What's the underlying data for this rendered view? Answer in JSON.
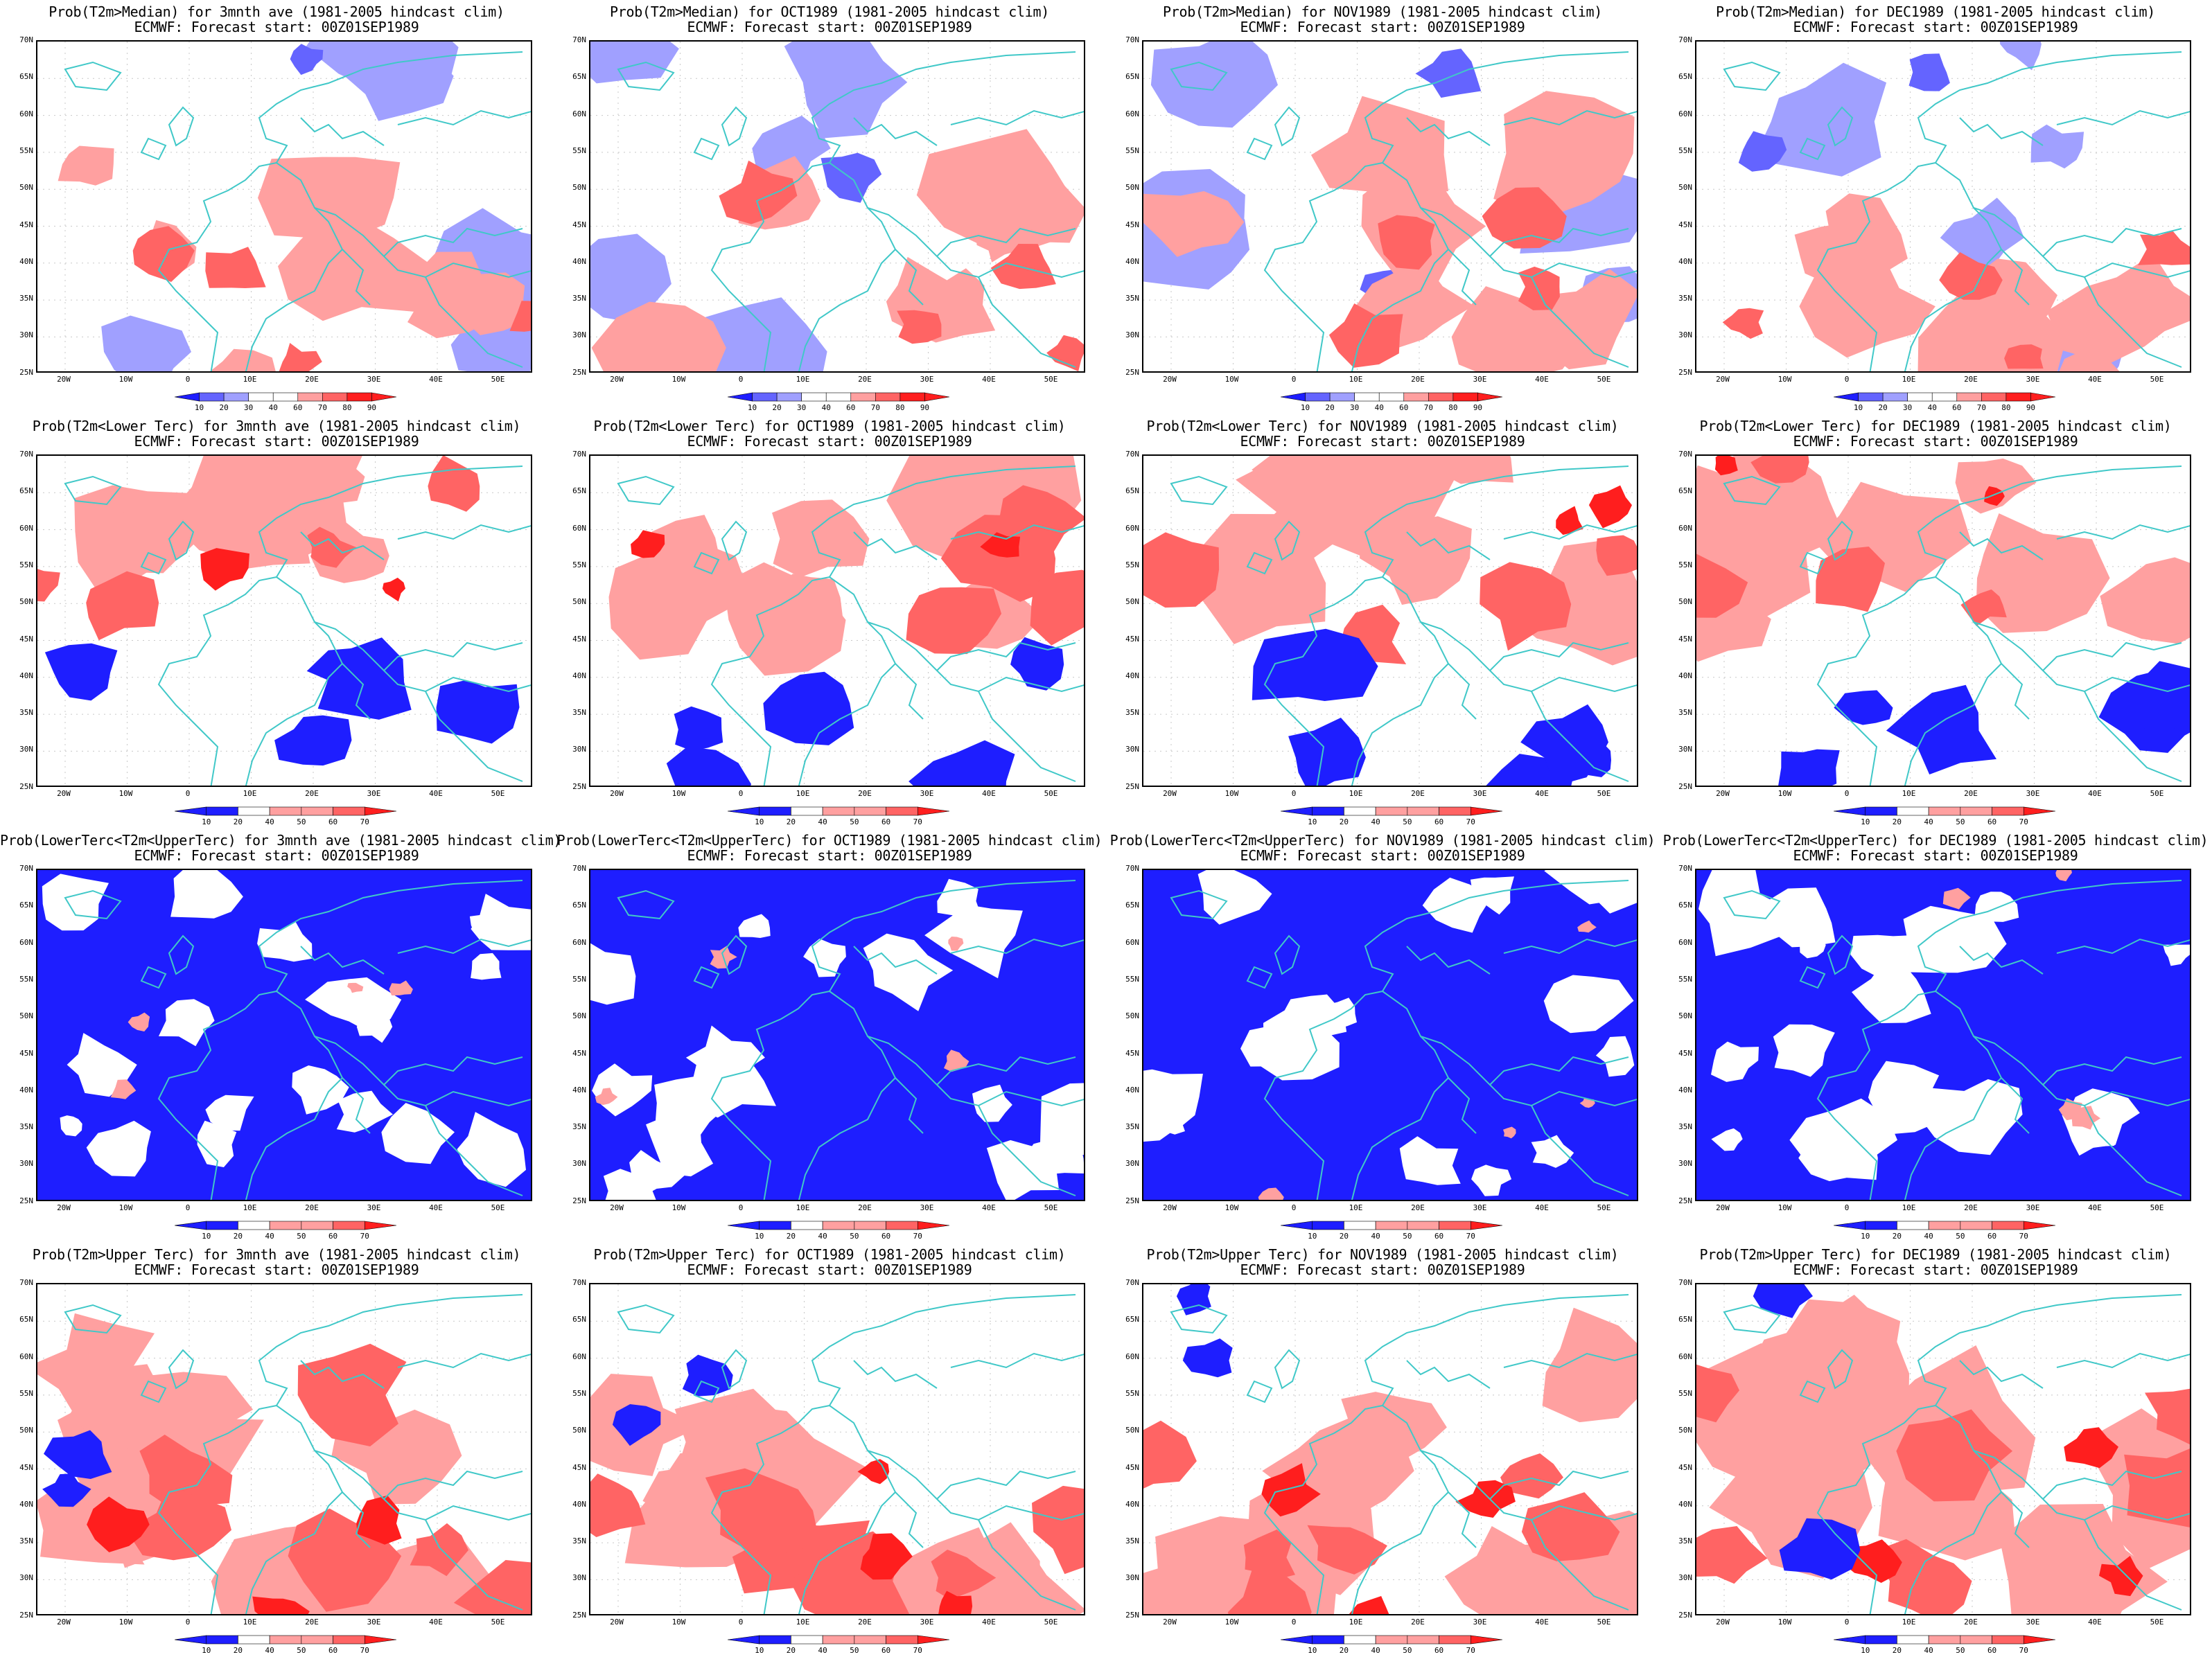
{
  "colors": {
    "coast": "#40c8c8",
    "blue_dark": "#1e1eff",
    "blue_mid": "#6464ff",
    "blue_light": "#a0a0ff",
    "red_light": "#ffa0a0",
    "red_mid": "#ff6464",
    "red_dark": "#ff1e1e"
  },
  "axes": {
    "y_ticks": [
      "70N",
      "65N",
      "60N",
      "55N",
      "50N",
      "45N",
      "40N",
      "35N",
      "30N",
      "25N"
    ],
    "x_ticks": [
      "20W",
      "10W",
      "0",
      "10E",
      "20E",
      "30E",
      "40E",
      "50E"
    ]
  },
  "colorbars": {
    "median": [
      "10",
      "20",
      "30",
      "40",
      "60",
      "70",
      "80",
      "90"
    ],
    "tercile": [
      "10",
      "20",
      "40",
      "50",
      "60",
      "70"
    ]
  },
  "panels": [
    {
      "title1": "Prob(T2m>Median) for 3mnth ave (1981-2005 hindcast clim)",
      "title2": "ECMWF: Forecast start: 00Z01SEP1989",
      "bar": "median",
      "pattern": "median"
    },
    {
      "title1": "Prob(T2m>Median) for OCT1989 (1981-2005 hindcast clim)",
      "title2": "ECMWF: Forecast start: 00Z01SEP1989",
      "bar": "median",
      "pattern": "median"
    },
    {
      "title1": "Prob(T2m>Median) for NOV1989 (1981-2005 hindcast clim)",
      "title2": "ECMWF: Forecast start: 00Z01SEP1989",
      "bar": "median",
      "pattern": "median"
    },
    {
      "title1": "Prob(T2m>Median) for DEC1989 (1981-2005 hindcast clim)",
      "title2": "ECMWF: Forecast start: 00Z01SEP1989",
      "bar": "median",
      "pattern": "median"
    },
    {
      "title1": "Prob(T2m<Lower Terc) for 3mnth ave (1981-2005 hindcast clim)",
      "title2": "ECMWF: Forecast start: 00Z01SEP1989",
      "bar": "tercile",
      "pattern": "lower"
    },
    {
      "title1": "Prob(T2m<Lower Terc) for OCT1989 (1981-2005 hindcast clim)",
      "title2": "ECMWF: Forecast start: 00Z01SEP1989",
      "bar": "tercile",
      "pattern": "lower"
    },
    {
      "title1": "Prob(T2m<Lower Terc) for NOV1989 (1981-2005 hindcast clim)",
      "title2": "ECMWF: Forecast start: 00Z01SEP1989",
      "bar": "tercile",
      "pattern": "lower"
    },
    {
      "title1": "Prob(T2m<Lower Terc) for DEC1989 (1981-2005 hindcast clim)",
      "title2": "ECMWF: Forecast start: 00Z01SEP1989",
      "bar": "tercile",
      "pattern": "lower"
    },
    {
      "title1": "Prob(LowerTerc<T2m<UpperTerc) for 3mnth ave (1981-2005 hindcast clim)",
      "title2": "ECMWF: Forecast start: 00Z01SEP1989",
      "bar": "tercile",
      "pattern": "middle"
    },
    {
      "title1": "Prob(LowerTerc<T2m<UpperTerc) for OCT1989 (1981-2005 hindcast clim)",
      "title2": "ECMWF: Forecast start: 00Z01SEP1989",
      "bar": "tercile",
      "pattern": "middle"
    },
    {
      "title1": "Prob(LowerTerc<T2m<UpperTerc) for NOV1989 (1981-2005 hindcast clim)",
      "title2": "ECMWF: Forecast start: 00Z01SEP1989",
      "bar": "tercile",
      "pattern": "middle"
    },
    {
      "title1": "Prob(LowerTerc<T2m<UpperTerc) for DEC1989 (1981-2005 hindcast clim)",
      "title2": "ECMWF: Forecast start: 00Z01SEP1989",
      "bar": "tercile",
      "pattern": "middle"
    },
    {
      "title1": "Prob(T2m>Upper Terc) for 3mnth ave (1981-2005 hindcast clim)",
      "title2": "ECMWF: Forecast start: 00Z01SEP1989",
      "bar": "tercile",
      "pattern": "upper"
    },
    {
      "title1": "Prob(T2m>Upper Terc) for OCT1989 (1981-2005 hindcast clim)",
      "title2": "ECMWF: Forecast start: 00Z01SEP1989",
      "bar": "tercile",
      "pattern": "upper"
    },
    {
      "title1": "Prob(T2m>Upper Terc) for NOV1989 (1981-2005 hindcast clim)",
      "title2": "ECMWF: Forecast start: 00Z01SEP1989",
      "bar": "tercile",
      "pattern": "upper"
    },
    {
      "title1": "Prob(T2m>Upper Terc) for DEC1989 (1981-2005 hindcast clim)",
      "title2": "ECMWF: Forecast start: 00Z01SEP1989",
      "bar": "tercile",
      "pattern": "upper"
    }
  ]
}
